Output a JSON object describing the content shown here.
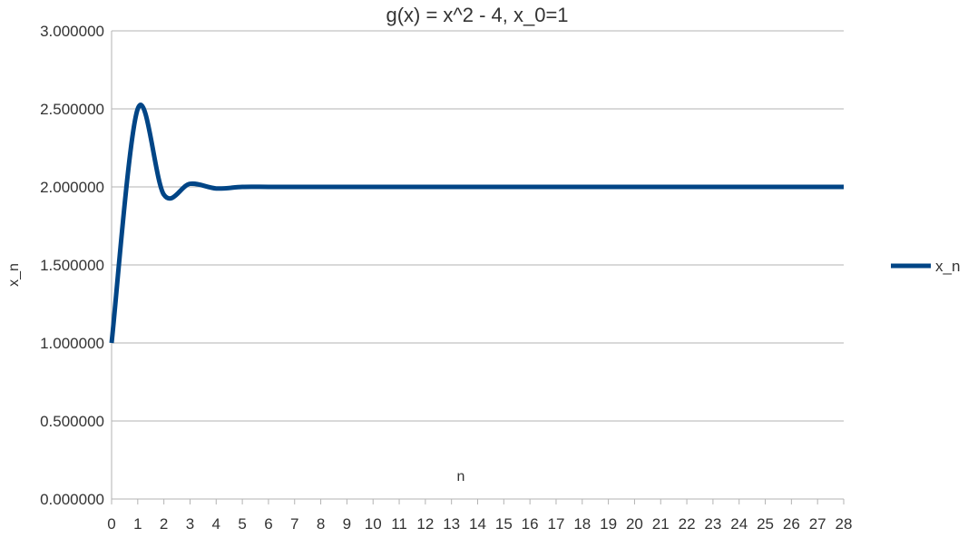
{
  "chart_data": {
    "type": "line",
    "title": "g(x) = x^2 - 4, x_0=1",
    "xlabel": "n",
    "ylabel": "x_n",
    "x": [
      0,
      1,
      2,
      3,
      4,
      5,
      6,
      7,
      8,
      9,
      10,
      11,
      12,
      13,
      14,
      15,
      16,
      17,
      18,
      19,
      20,
      21,
      22,
      23,
      24,
      25,
      26,
      27,
      28
    ],
    "ylim": [
      0,
      3
    ],
    "yticks": [
      "0.000000",
      "0.500000",
      "1.000000",
      "1.500000",
      "2.000000",
      "2.500000",
      "3.000000"
    ],
    "grid": true,
    "legend_position": "right",
    "series": [
      {
        "name": "x_n",
        "color": "#004586",
        "smooth": true,
        "values": [
          1.0,
          2.5,
          1.95,
          2.02,
          1.99,
          2.0,
          2.0,
          2.0,
          2.0,
          2.0,
          2.0,
          2.0,
          2.0,
          2.0,
          2.0,
          2.0,
          2.0,
          2.0,
          2.0,
          2.0,
          2.0,
          2.0,
          2.0,
          2.0,
          2.0,
          2.0,
          2.0,
          2.0,
          2.0
        ]
      }
    ]
  }
}
